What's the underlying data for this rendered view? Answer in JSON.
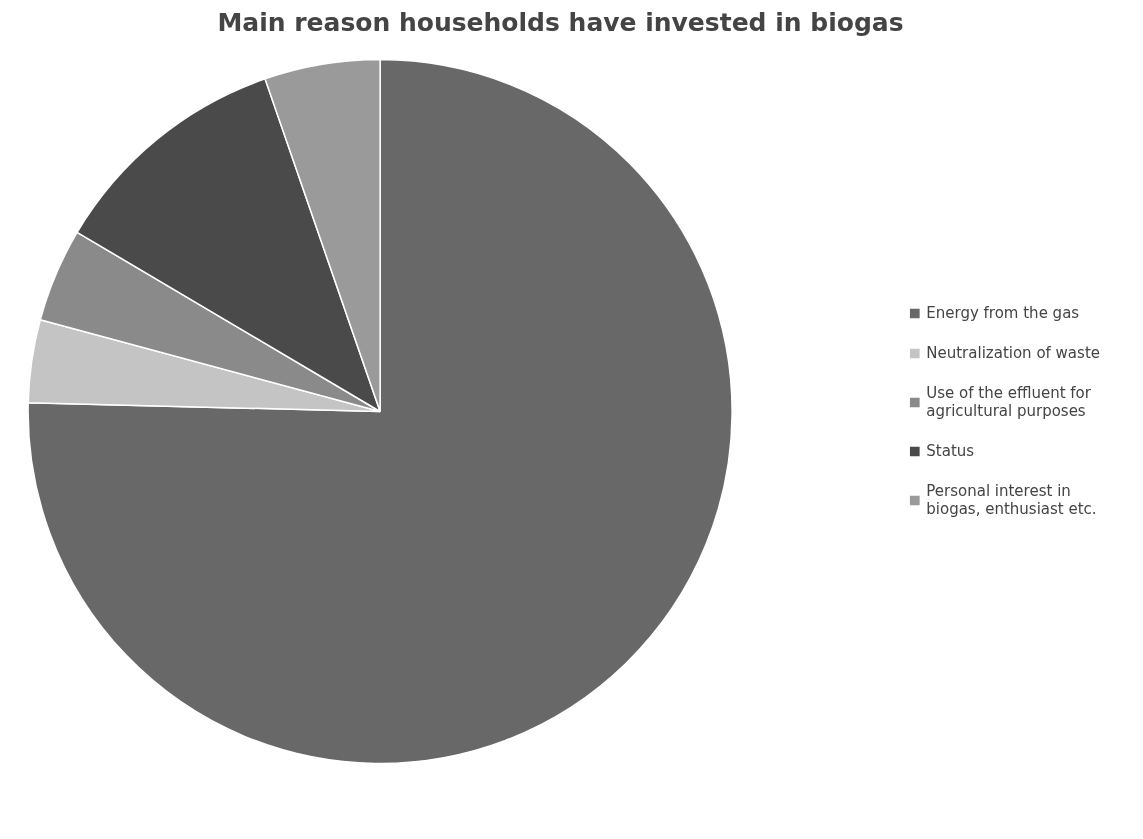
{
  "chart_data": {
    "type": "pie",
    "title": "Main reason households have invested in biogas",
    "categories": [
      "Energy from the gas",
      "Neutralization of waste",
      "Use of the effluent for agricultural purposes",
      "Status",
      "Personal interest in biogas, enthusiast etc."
    ],
    "values": [
      75.4,
      3.8,
      4.3,
      11.2,
      5.3
    ],
    "colors": [
      "#686868",
      "#c4c4c4",
      "#8a8a8a",
      "#4a4a4a",
      "#9a9a9a"
    ],
    "legend": "right"
  }
}
